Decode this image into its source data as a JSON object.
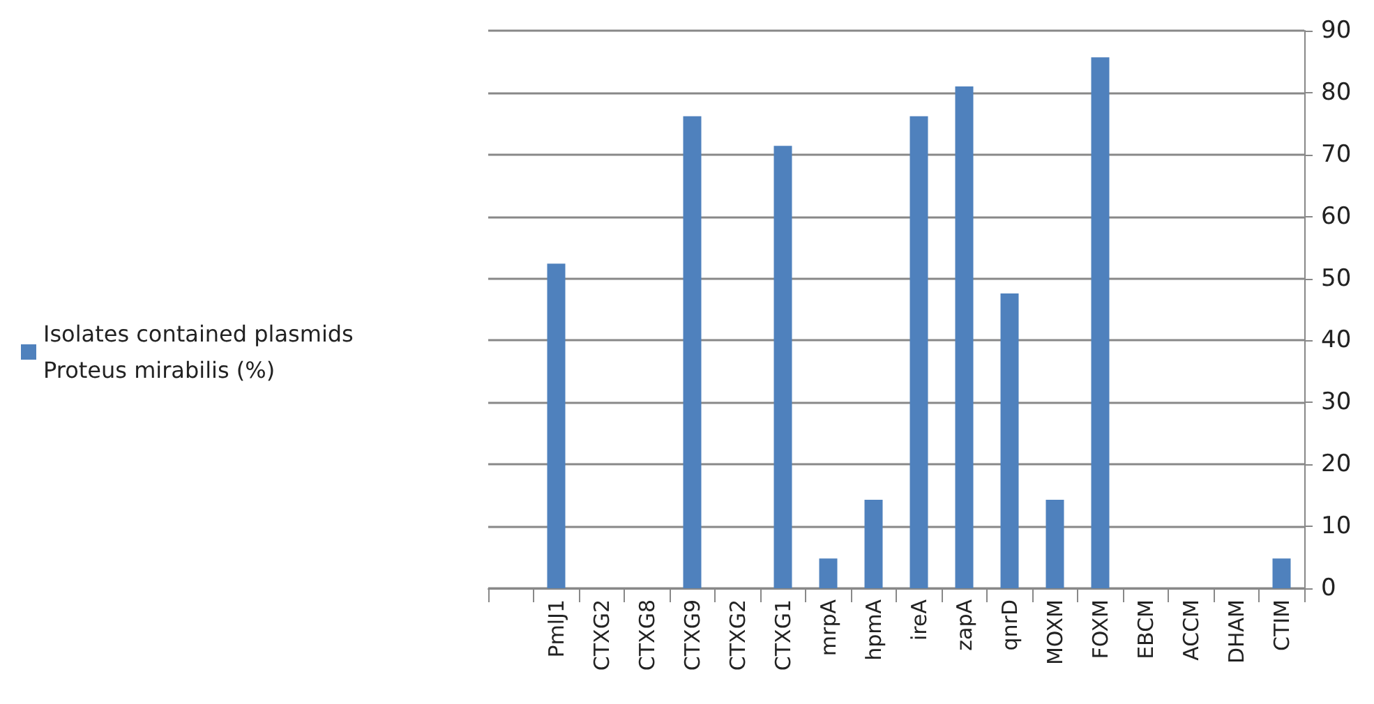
{
  "chart_data": {
    "type": "bar",
    "categories": [
      null,
      "PmlJ1",
      "CTXG2",
      "CTXG8",
      "CTXG9",
      "CTXG2",
      "CTXG1",
      "mrpA",
      "hpmA",
      "ireA",
      "zapA",
      "qnrD",
      "MOXM",
      "FOXM",
      "EBCM",
      "ACCM",
      "DHAM",
      "CTIM"
    ],
    "series": [
      {
        "name": "Isolates contained plasmids\nProteus mirabilis (%)",
        "color": "#4f81bd",
        "values": [
          null,
          52.4,
          0,
          0,
          76.2,
          0,
          71.4,
          4.8,
          14.3,
          76.2,
          81,
          47.6,
          14.3,
          85.7,
          0,
          0,
          0,
          4.8
        ]
      }
    ],
    "ylim": [
      0,
      90
    ],
    "yticks": [
      0,
      10,
      20,
      30,
      40,
      50,
      60,
      70,
      80,
      90
    ],
    "grid": "y",
    "legend": "left"
  }
}
